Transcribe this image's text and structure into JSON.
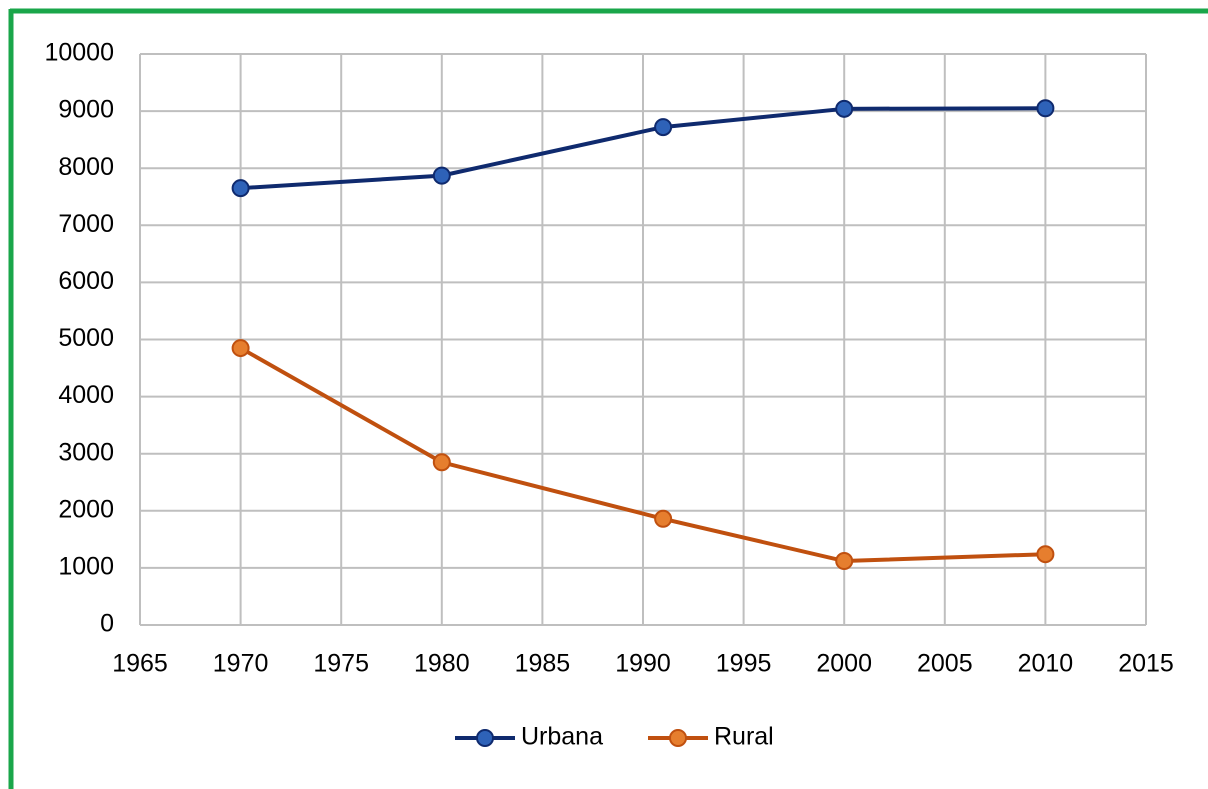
{
  "chart_data": {
    "type": "line",
    "x": [
      1970,
      1980,
      1991,
      2000,
      2010
    ],
    "series": [
      {
        "name": "Urbana",
        "color": "#0f2a6e",
        "marker_color": "#2e62b8",
        "values": [
          7650,
          7870,
          8720,
          9040,
          9050
        ]
      },
      {
        "name": "Rural",
        "color": "#c0500f",
        "marker_color": "#e67e2e",
        "values": [
          4850,
          2850,
          1860,
          1120,
          1240
        ]
      }
    ],
    "xlim": [
      1965,
      2015
    ],
    "xticks": [
      1965,
      1970,
      1975,
      1980,
      1985,
      1990,
      1995,
      2000,
      2005,
      2010,
      2015
    ],
    "ylim": [
      0,
      10000
    ],
    "yticks": [
      0,
      1000,
      2000,
      3000,
      4000,
      5000,
      6000,
      7000,
      8000,
      9000,
      10000
    ],
    "grid": true,
    "legend": "bottom"
  }
}
